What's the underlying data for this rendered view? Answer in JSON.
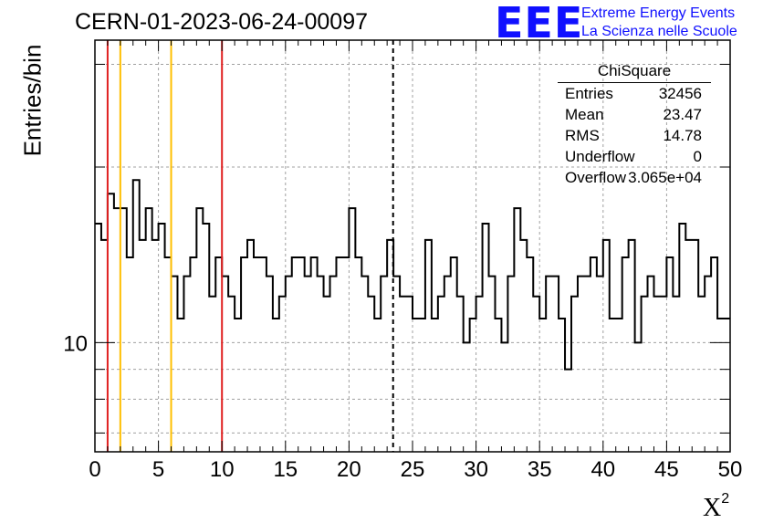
{
  "header": {
    "title": "CERN-01-2023-06-24-00097",
    "logo": "EEE",
    "logo_line1": "Extreme Energy Events",
    "logo_line2": "La Scienza nelle Scuole"
  },
  "stats": {
    "title": "ChiSquare",
    "rows": [
      {
        "label": "Entries",
        "value": "32456"
      },
      {
        "label": "Mean",
        "value": "23.47"
      },
      {
        "label": "RMS",
        "value": "14.78"
      },
      {
        "label": "Underflow",
        "value": "0"
      },
      {
        "label": "Overflow",
        "value": "3.065e+04"
      }
    ]
  },
  "chart_data": {
    "type": "histogram",
    "title": "CERN-01-2023-06-24-00097",
    "xlabel": "X",
    "xlabel_superscript": "2",
    "ylabel": "Entries/bin",
    "xlim": [
      0,
      50
    ],
    "ylim": [
      6.5,
      33
    ],
    "yscale": "log",
    "grid": true,
    "bin_width": 0.5,
    "xticks": [
      0,
      5,
      10,
      15,
      20,
      25,
      30,
      35,
      40,
      45,
      50
    ],
    "yticks": [
      10
    ],
    "values": [
      16,
      15,
      18,
      17,
      17,
      14,
      19,
      15,
      17,
      15,
      16,
      14,
      13,
      11,
      13,
      14,
      17,
      16,
      12,
      14,
      13,
      12,
      11,
      14,
      15,
      14,
      14,
      13,
      11,
      12,
      13,
      14,
      14,
      13,
      14,
      13,
      12,
      13,
      14,
      14,
      17,
      14,
      13,
      12,
      11,
      13,
      15,
      13,
      12,
      12,
      11,
      11,
      15,
      11,
      12,
      13,
      14,
      12,
      10,
      11,
      12,
      16,
      13,
      11,
      10,
      13,
      17,
      15,
      14,
      12,
      11,
      13,
      13,
      11,
      9,
      12,
      13,
      13,
      14,
      13,
      15,
      11,
      11,
      14,
      15,
      10,
      12,
      13,
      12,
      12,
      14,
      12,
      16,
      15,
      15,
      12,
      13,
      14,
      11,
      11
    ],
    "vertical_lines": [
      {
        "x": 1,
        "color": "#e02020",
        "style": "solid"
      },
      {
        "x": 2,
        "color": "#ffbf00",
        "style": "solid"
      },
      {
        "x": 6,
        "color": "#ffbf00",
        "style": "solid"
      },
      {
        "x": 10,
        "color": "#e02020",
        "style": "solid"
      },
      {
        "x": 23.47,
        "color": "#000000",
        "style": "dashed"
      }
    ]
  }
}
